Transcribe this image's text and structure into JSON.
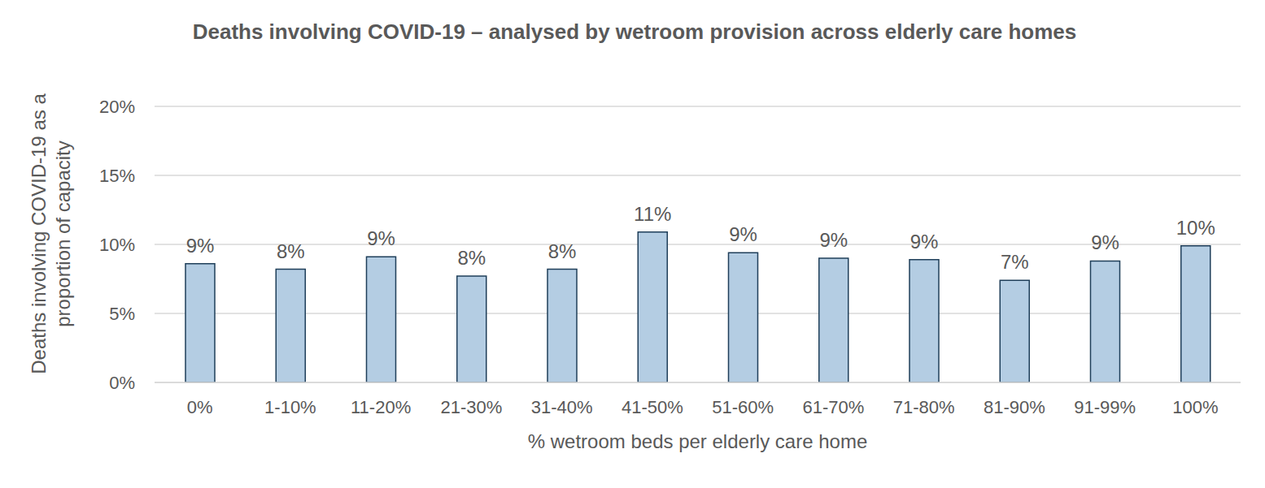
{
  "chart_data": {
    "type": "bar",
    "title": "Deaths involving COVID-19 – analysed by wetroom provision across elderly care homes",
    "x_label": "% wetroom beds per elderly care home",
    "y_label": "Deaths involving COVID-19 as a proportion of capacity",
    "categories": [
      "0%",
      "1-10%",
      "11-20%",
      "21-30%",
      "31-40%",
      "41-50%",
      "51-60%",
      "61-70%",
      "71-80%",
      "81-90%",
      "91-99%",
      "100%"
    ],
    "values": [
      8.6,
      8.2,
      9.1,
      7.7,
      8.2,
      10.9,
      9.4,
      9.0,
      8.9,
      7.4,
      8.8,
      9.9
    ],
    "value_labels": [
      "9%",
      "8%",
      "9%",
      "8%",
      "8%",
      "11%",
      "9%",
      "9%",
      "9%",
      "7%",
      "9%",
      "10%"
    ],
    "color": "#b4cde3",
    "ylim": [
      0,
      20
    ],
    "yticks": [
      {
        "value": 0,
        "label": "0%"
      },
      {
        "value": 5,
        "label": "5%"
      },
      {
        "value": 10,
        "label": "10%"
      },
      {
        "value": 15,
        "label": "15%"
      },
      {
        "value": 20,
        "label": "20%"
      }
    ],
    "grid": true,
    "data_labels": true
  }
}
